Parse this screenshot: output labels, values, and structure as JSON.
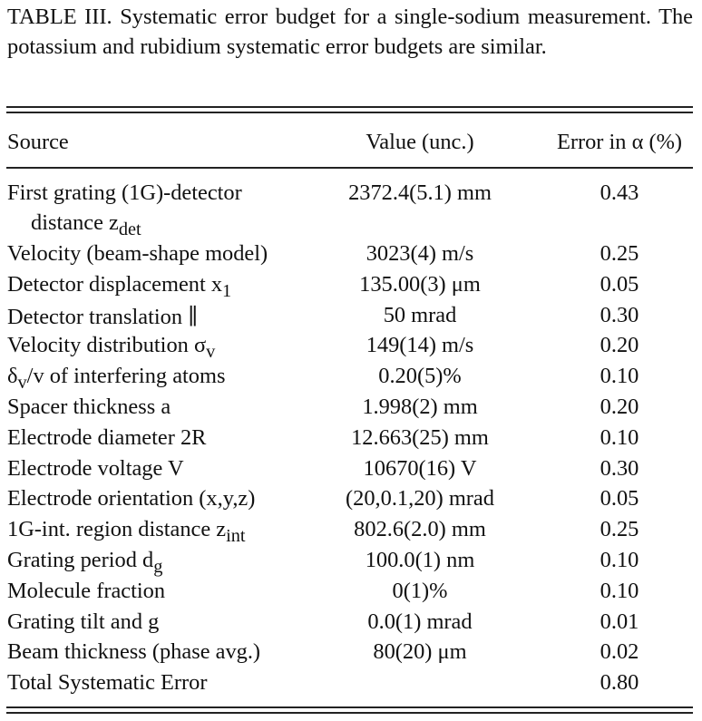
{
  "caption": "TABLE III. Systematic error budget for a single-sodium measurement. The potassium and rubidium systematic error budgets are similar.",
  "columns": [
    "Source",
    "Value (unc.)",
    "Error in α (%)"
  ],
  "rows": [
    {
      "source": "First grating (1G)-detector",
      "source_line2": "distance z",
      "source_line2_sub": "det",
      "value": "2372.4(5.1) mm",
      "error": "0.43"
    },
    {
      "source": "Velocity (beam-shape model)",
      "value": "3023(4) m/s",
      "error": "0.25"
    },
    {
      "source": "Detector displacement x",
      "source_sub": "1",
      "value": "135.00(3) μm",
      "error": "0.05"
    },
    {
      "source": "Detector translation ∥",
      "value": "50 mrad",
      "error": "0.30"
    },
    {
      "source": "Velocity distribution σ",
      "source_sub": "v",
      "value": "149(14) m/s",
      "error": "0.20"
    },
    {
      "source": "δ",
      "source_sub": "v",
      "source_after": "/v of interfering atoms",
      "value": "0.20(5)%",
      "error": "0.10"
    },
    {
      "source": "Spacer thickness a",
      "value": "1.998(2) mm",
      "error": "0.20"
    },
    {
      "source": "Electrode diameter 2R",
      "value": "12.663(25) mm",
      "error": "0.10"
    },
    {
      "source": "Electrode voltage V",
      "value": "10670(16) V",
      "error": "0.30"
    },
    {
      "source": "Electrode orientation (x,y,z)",
      "value": "(20,0.1,20) mrad",
      "error": "0.05"
    },
    {
      "source": "1G-int. region distance z",
      "source_sub": "int",
      "value": "802.6(2.0) mm",
      "error": "0.25"
    },
    {
      "source": "Grating period d",
      "source_sub": "g",
      "value": "100.0(1) nm",
      "error": "0.10"
    },
    {
      "source": "Molecule fraction",
      "value": "0(1)%",
      "error": "0.10"
    },
    {
      "source": "Grating tilt and g",
      "value": "0.0(1) mrad",
      "error": "0.01"
    },
    {
      "source": "Beam thickness (phase avg.)",
      "value": "80(20) μm",
      "error": "0.02"
    },
    {
      "source": "Total Systematic Error",
      "value": "",
      "error": "0.80"
    }
  ]
}
